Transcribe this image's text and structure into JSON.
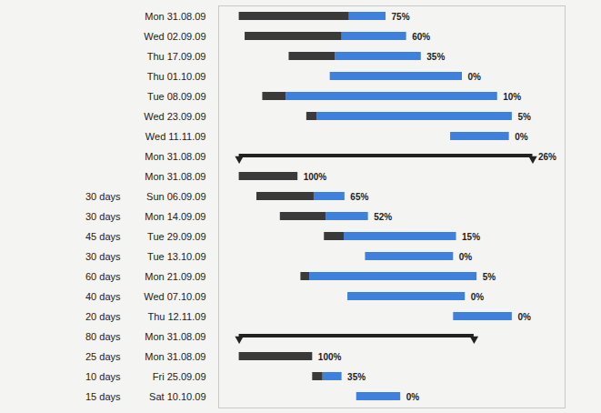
{
  "chart_data": {
    "type": "gantt",
    "x": [
      "Mon 31.08.09",
      "Wed 02.09.09",
      "Thu 17.09.09",
      "Thu 01.10.09",
      "Tue 08.09.09",
      "Wed 23.09.09",
      "Wed 11.11.09",
      "Mon 31.08.09",
      "Mon 31.08.09",
      "Sun 06.09.09",
      "Mon 14.09.09",
      "Tue 29.09.09",
      "Tue 13.10.09",
      "Mon 21.09.09",
      "Wed 07.10.09",
      "Thu 12.11.09",
      "Mon 31.08.09",
      "Mon 31.08.09",
      "Fri 25.09.09",
      "Sat 10.10.09"
    ],
    "durations": [
      50,
      55,
      45,
      45,
      80,
      70,
      20,
      100,
      20,
      30,
      30,
      45,
      30,
      60,
      40,
      20,
      80,
      25,
      10,
      15
    ],
    "duration_labels": [
      null,
      null,
      null,
      null,
      null,
      null,
      null,
      null,
      null,
      "30 days",
      "30 days",
      "45 days",
      "30 days",
      "60 days",
      "40 days",
      "20 days",
      "80 days",
      "25 days",
      "10 days",
      "15 days"
    ],
    "values": [
      75,
      60,
      35,
      0,
      10,
      5,
      0,
      26,
      100,
      65,
      52,
      15,
      0,
      5,
      0,
      0,
      null,
      100,
      35,
      0
    ],
    "value_labels": [
      "75%",
      "60%",
      "35%",
      "0%",
      "10%",
      "5%",
      "0%",
      "26%",
      "100%",
      "65%",
      "52%",
      "15%",
      "0%",
      "5%",
      "0%",
      "0%",
      null,
      "100%",
      "35%",
      "0%"
    ],
    "summary": [
      false,
      false,
      false,
      false,
      false,
      false,
      false,
      true,
      false,
      false,
      false,
      false,
      false,
      false,
      false,
      false,
      true,
      false,
      false,
      false
    ],
    "colors": [
      "#3a3a3a",
      "#3f80dc"
    ],
    "xlim": [
      "2009-08-24",
      "2009-12-20"
    ],
    "data_labels": true,
    "tick_labels": false
  }
}
